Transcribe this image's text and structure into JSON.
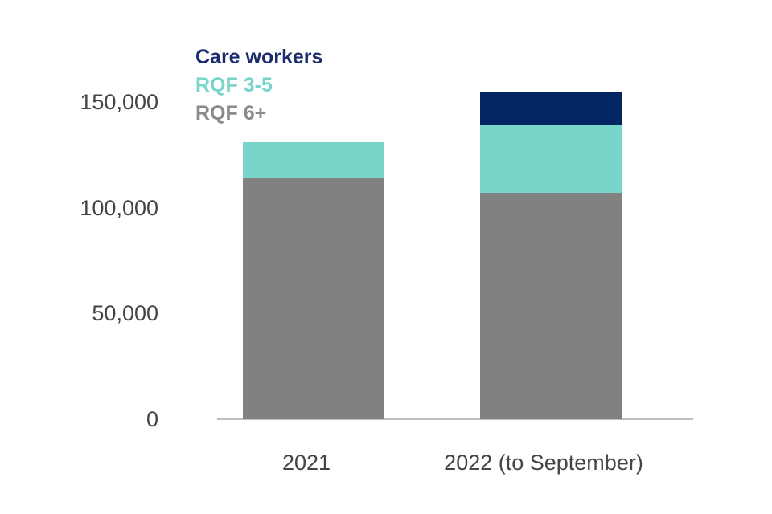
{
  "chart_data": {
    "type": "bar",
    "stacked": true,
    "title": "",
    "xlabel": "",
    "ylabel": "",
    "categories": [
      "2021",
      "2022 (to September)"
    ],
    "series": [
      {
        "name": "RQF 6+",
        "color": "#818181",
        "values": [
          114000,
          107000
        ]
      },
      {
        "name": "RQF 3-5",
        "color": "#79d5ca",
        "values": [
          17000,
          32000
        ]
      },
      {
        "name": "Care workers",
        "color": "#042563",
        "values": [
          0,
          16000
        ]
      }
    ],
    "totals": [
      131000,
      155000
    ],
    "y_ticks": [
      0,
      50000,
      100000,
      150000
    ],
    "y_tick_labels": [
      "0",
      "50,000",
      "100,000",
      "150,000"
    ],
    "ylim": [
      0,
      165000
    ],
    "grid": false,
    "legend": {
      "position": "top-left",
      "entries": [
        {
          "label": "Care workers",
          "color": "#1b2d6e"
        },
        {
          "label": "RQF 3-5",
          "color": "#79d5ca"
        },
        {
          "label": "RQF 6+",
          "color": "#8a8a8a"
        }
      ]
    },
    "colors": {
      "axis_line": "#bfbfbf",
      "tick_text": "#444444",
      "background": "#ffffff"
    }
  }
}
